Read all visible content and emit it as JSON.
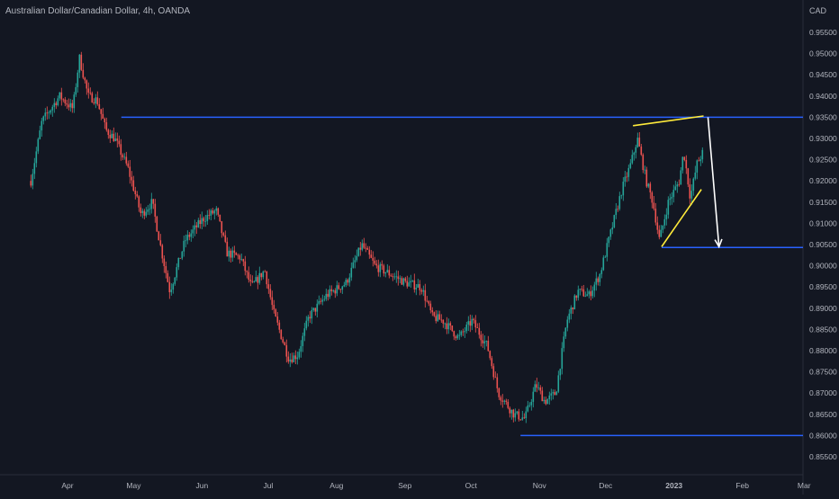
{
  "header": {
    "title": "Australian Dollar/Canadian Dollar, 4h, OANDA",
    "currency": "CAD"
  },
  "colors": {
    "background": "#131722",
    "up": "#26a69a",
    "down": "#ef5350",
    "level_line": "#2962ff",
    "wedge_line": "#ffeb3b",
    "arrow": "#ffffff",
    "axis_text": "#b2b5be"
  },
  "chart_data": {
    "type": "candlestick",
    "ylim": [
      0.853,
      0.9595
    ],
    "y_ticks": [
      "0.95500",
      "0.95000",
      "0.94500",
      "0.94000",
      "0.93500",
      "0.93000",
      "0.92500",
      "0.92000",
      "0.91500",
      "0.91000",
      "0.90500",
      "0.90000",
      "0.89500",
      "0.89000",
      "0.88500",
      "0.88000",
      "0.87500",
      "0.87000",
      "0.86500",
      "0.86000",
      "0.85500"
    ],
    "x_ticks": [
      "Apr",
      "May",
      "Jun",
      "Jul",
      "Aug",
      "Sep",
      "Oct",
      "Nov",
      "Dec",
      "2023",
      "Feb",
      "Mar"
    ],
    "price_path": [
      [
        "2022-03-15",
        0.92
      ],
      [
        "2022-03-20",
        0.934
      ],
      [
        "2022-03-28",
        0.94
      ],
      [
        "2022-04-03",
        0.937
      ],
      [
        "2022-04-06",
        0.949
      ],
      [
        "2022-04-10",
        0.94
      ],
      [
        "2022-04-14",
        0.939
      ],
      [
        "2022-04-18",
        0.932
      ],
      [
        "2022-04-22",
        0.93
      ],
      [
        "2022-04-28",
        0.923
      ],
      [
        "2022-05-04",
        0.912
      ],
      [
        "2022-05-09",
        0.915
      ],
      [
        "2022-05-13",
        0.904
      ],
      [
        "2022-05-17",
        0.894
      ],
      [
        "2022-05-24",
        0.906
      ],
      [
        "2022-06-01",
        0.911
      ],
      [
        "2022-06-07",
        0.913
      ],
      [
        "2022-06-12",
        0.903
      ],
      [
        "2022-06-18",
        0.902
      ],
      [
        "2022-06-23",
        0.895
      ],
      [
        "2022-06-29",
        0.899
      ],
      [
        "2022-07-03",
        0.889
      ],
      [
        "2022-07-10",
        0.878
      ],
      [
        "2022-07-14",
        0.879
      ],
      [
        "2022-07-19",
        0.888
      ],
      [
        "2022-07-27",
        0.893
      ],
      [
        "2022-08-05",
        0.896
      ],
      [
        "2022-08-12",
        0.905
      ],
      [
        "2022-08-18",
        0.9
      ],
      [
        "2022-08-25",
        0.898
      ],
      [
        "2022-09-01",
        0.896
      ],
      [
        "2022-09-08",
        0.895
      ],
      [
        "2022-09-13",
        0.888
      ],
      [
        "2022-09-18",
        0.887
      ],
      [
        "2022-09-25",
        0.883
      ],
      [
        "2022-10-01",
        0.887
      ],
      [
        "2022-10-08",
        0.881
      ],
      [
        "2022-10-13",
        0.87
      ],
      [
        "2022-10-20",
        0.865
      ],
      [
        "2022-10-25",
        0.864
      ],
      [
        "2022-10-30",
        0.872
      ],
      [
        "2022-11-03",
        0.868
      ],
      [
        "2022-11-08",
        0.87
      ],
      [
        "2022-11-13",
        0.887
      ],
      [
        "2022-11-18",
        0.894
      ],
      [
        "2022-11-23",
        0.893
      ],
      [
        "2022-11-28",
        0.898
      ],
      [
        "2022-12-03",
        0.908
      ],
      [
        "2022-12-08",
        0.918
      ],
      [
        "2022-12-12",
        0.924
      ],
      [
        "2022-12-15",
        0.93
      ],
      [
        "2022-12-19",
        0.92
      ],
      [
        "2022-12-22",
        0.915
      ],
      [
        "2022-12-25",
        0.906
      ],
      [
        "2022-12-29",
        0.915
      ],
      [
        "2023-01-03",
        0.92
      ],
      [
        "2023-01-05",
        0.927
      ],
      [
        "2023-01-08",
        0.916
      ],
      [
        "2023-01-11",
        0.924
      ],
      [
        "2023-01-14",
        0.927
      ]
    ]
  },
  "drawings": {
    "horizontal_lines": [
      {
        "price": 0.935,
        "from": "2022-04-25",
        "to": "2023-03-31"
      },
      {
        "price": 0.9043,
        "from": "2022-12-26",
        "to": "2023-03-31"
      },
      {
        "price": 0.86,
        "from": "2022-10-23",
        "to": "2023-03-31"
      }
    ],
    "wedge_upper": [
      [
        "2022-12-13",
        0.933
      ],
      [
        "2023-01-14",
        0.9353
      ]
    ],
    "wedge_lower": [
      [
        "2022-12-26",
        0.9045
      ],
      [
        "2023-01-13",
        0.918
      ]
    ],
    "arrow": {
      "from": [
        "2023-01-16",
        0.935
      ],
      "to": [
        "2023-01-21",
        0.9045
      ]
    }
  }
}
